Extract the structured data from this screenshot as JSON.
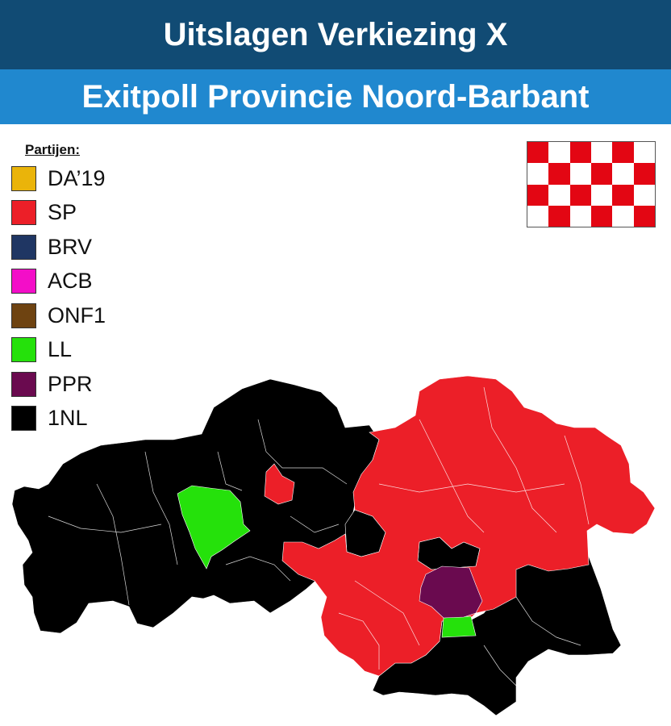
{
  "header": {
    "title": "Uitslagen Verkiezing X",
    "subtitle": "Exitpoll Provincie Noord-Barbant"
  },
  "legend": {
    "heading": "Partijen:",
    "parties": [
      {
        "label": "DA’19",
        "color": "#eab40a"
      },
      {
        "label": "SP",
        "color": "#ec1f28"
      },
      {
        "label": "BRV",
        "color": "#1f3663"
      },
      {
        "label": "ACB",
        "color": "#f30ec8"
      },
      {
        "label": "ONF1",
        "color": "#6e4311"
      },
      {
        "label": "LL",
        "color": "#25e10b"
      },
      {
        "label": "PPR",
        "color": "#6a0a4f"
      },
      {
        "label": "1NL",
        "color": "#000000"
      }
    ]
  },
  "flag": {
    "pattern": "red-white-checkered",
    "colors": [
      "#e30613",
      "#ffffff"
    ]
  },
  "map": {
    "regions": [
      {
        "party": "1NL",
        "area": "west-and-south"
      },
      {
        "party": "SP",
        "area": "north-east-and-central"
      },
      {
        "party": "LL",
        "area": "west-central"
      },
      {
        "party": "LL",
        "area": "south-central"
      },
      {
        "party": "PPR",
        "area": "central"
      }
    ]
  }
}
